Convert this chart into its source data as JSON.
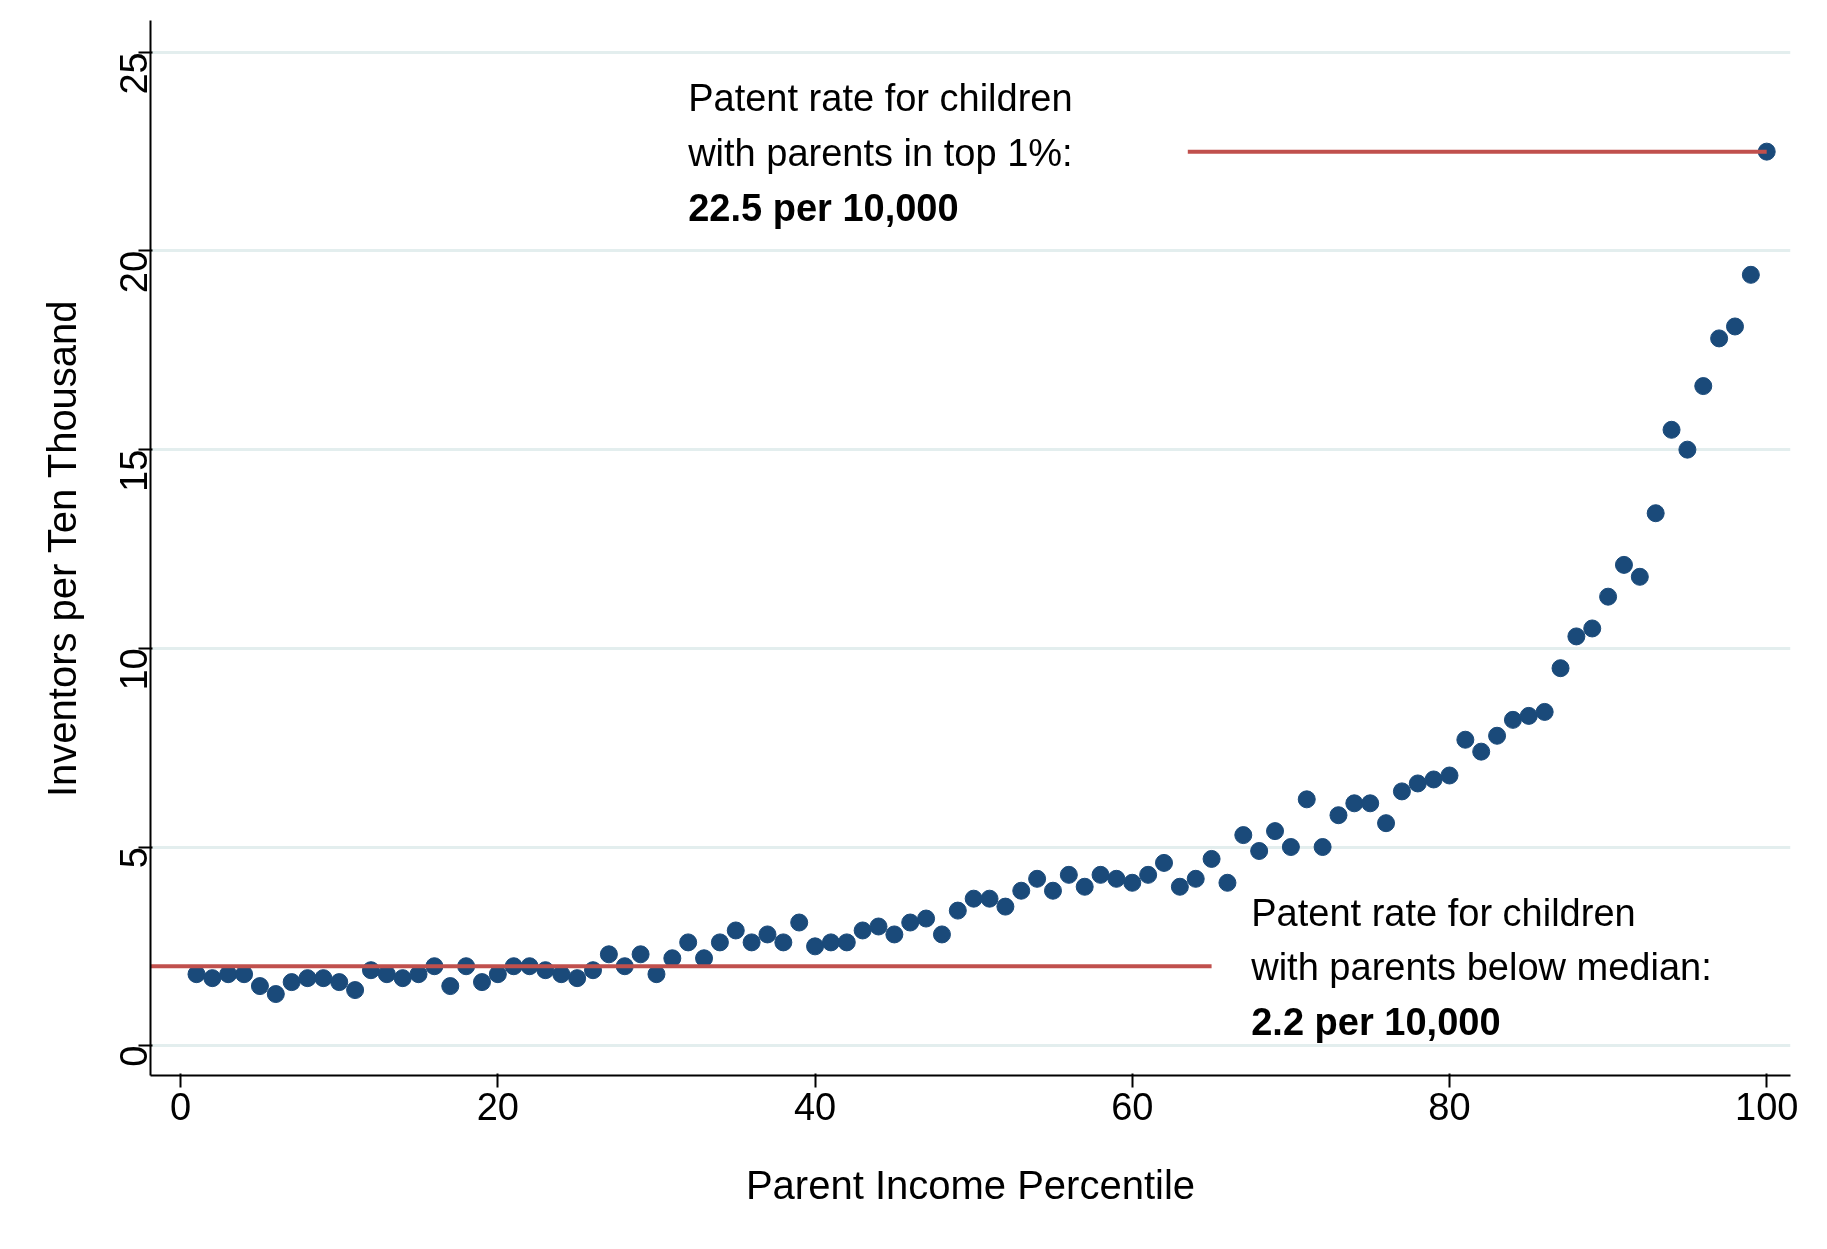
{
  "chart_data": {
    "type": "scatter",
    "xlabel": "Parent Income Percentile",
    "ylabel": "Inventors per Ten Thousand",
    "xlim": [
      -1.9,
      101.5
    ],
    "ylim": [
      -0.75,
      25.8
    ],
    "xticks": [
      0,
      20,
      40,
      60,
      80,
      100
    ],
    "yticks": [
      0,
      5,
      10,
      15,
      20,
      25
    ],
    "grid": "y",
    "series": [
      {
        "color": "#1a4a7a",
        "marker": "circle",
        "x": [
          1,
          2,
          3,
          4,
          5,
          6,
          7,
          8,
          9,
          10,
          11,
          12,
          13,
          14,
          15,
          16,
          17,
          18,
          19,
          20,
          21,
          22,
          23,
          24,
          25,
          26,
          27,
          28,
          29,
          30,
          31,
          32,
          33,
          34,
          35,
          36,
          37,
          38,
          39,
          40,
          41,
          42,
          43,
          44,
          45,
          46,
          47,
          48,
          49,
          50,
          51,
          52,
          53,
          54,
          55,
          56,
          57,
          58,
          59,
          60,
          61,
          62,
          63,
          64,
          65,
          66,
          67,
          68,
          69,
          70,
          71,
          72,
          73,
          74,
          75,
          76,
          77,
          78,
          79,
          80,
          81,
          82,
          83,
          84,
          85,
          86,
          87,
          88,
          89,
          90,
          91,
          92,
          93,
          94,
          95,
          96,
          97,
          98,
          99,
          100
        ],
        "values": [
          1.8,
          1.7,
          1.8,
          1.8,
          1.5,
          1.3,
          1.6,
          1.7,
          1.7,
          1.6,
          1.4,
          1.9,
          1.8,
          1.7,
          1.8,
          2.0,
          1.5,
          2.0,
          1.6,
          1.8,
          2.0,
          2.0,
          1.9,
          1.8,
          1.7,
          1.9,
          2.3,
          2.0,
          2.3,
          1.8,
          2.2,
          2.6,
          2.2,
          2.6,
          2.9,
          2.6,
          2.8,
          2.6,
          3.1,
          2.5,
          2.6,
          2.6,
          2.9,
          3.0,
          2.8,
          3.1,
          3.2,
          2.8,
          3.4,
          3.7,
          3.7,
          3.5,
          3.9,
          4.2,
          3.9,
          4.3,
          4.0,
          4.3,
          4.2,
          4.1,
          4.3,
          4.6,
          4.0,
          4.2,
          4.7,
          4.1,
          5.3,
          4.9,
          5.4,
          5.0,
          6.2,
          5.0,
          5.8,
          6.1,
          6.1,
          5.6,
          6.4,
          6.6,
          6.7,
          6.8,
          7.7,
          7.4,
          7.8,
          8.2,
          8.3,
          8.4,
          9.5,
          10.3,
          10.5,
          11.3,
          12.1,
          11.8,
          13.4,
          15.5,
          15.0,
          16.6,
          17.8,
          18.1,
          19.4,
          22.5
        ]
      },
      {
        "color": "#c0504d",
        "type": "line",
        "x": [
          -1.9,
          65
        ],
        "values": [
          2.0,
          2.0
        ]
      },
      {
        "color": "#c0504d",
        "type": "line",
        "x": [
          63.5,
          100
        ],
        "values": [
          22.5,
          22.5
        ]
      }
    ],
    "annotations": [
      "Patent rate for children\nwith parents in top 1%:\n22.5 per 10,000",
      "Patent rate for children\nwith parents below median:\n2.2 per 10,000"
    ]
  }
}
